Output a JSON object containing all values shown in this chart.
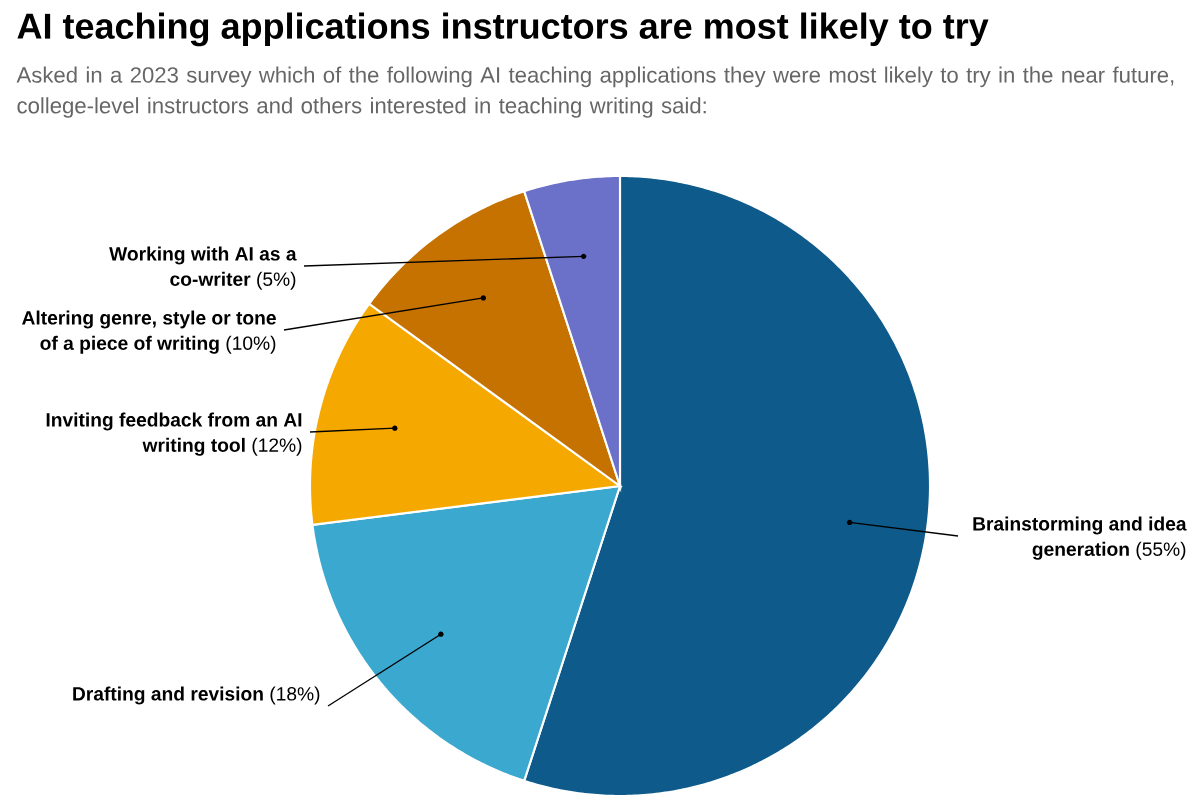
{
  "chart_data": {
    "type": "pie",
    "title": "AI teaching applications instructors are most likely to try",
    "subtitle": "Asked in a 2023 survey which of the following AI teaching applications they were most likely to try in the near future, college-level instructors and others interested in teaching writing said:",
    "categories": [
      "Brainstorming and idea generation",
      "Drafting and revision",
      "Inviting feedback from an AI writing tool",
      "Altering genre, style or tone of a piece of writing",
      "Working with AI as a co-writer"
    ],
    "values": [
      55,
      18,
      12,
      10,
      5
    ],
    "value_labels": [
      "(55%)",
      "(18%)",
      "(12%)",
      "(10%)",
      "(5%)"
    ],
    "colors": [
      "#0e5a8a",
      "#3aa8cf",
      "#f5a800",
      "#c67200",
      "#6b70c8"
    ]
  }
}
